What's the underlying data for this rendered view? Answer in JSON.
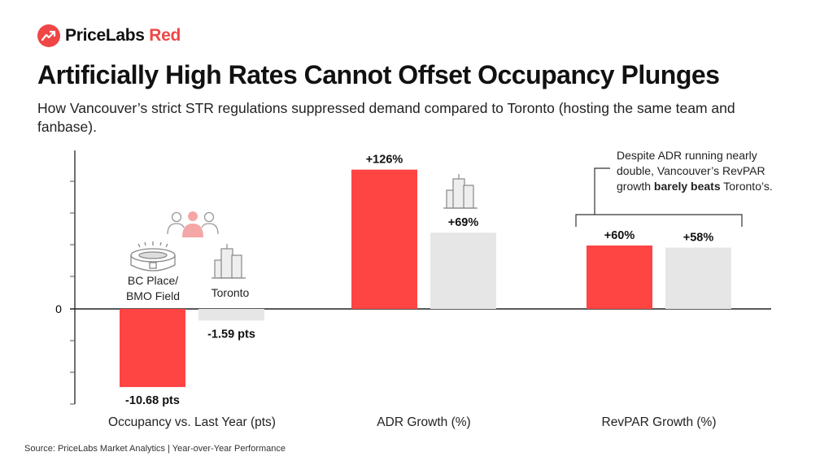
{
  "brand": {
    "name": "PriceLabs",
    "accent_word": "Red",
    "icon": "trending-up-icon",
    "accent_color": "#f04646"
  },
  "title": "Artificially High Rates Cannot Offset Occupancy Plunges",
  "subtitle": "How Vancouver’s strict STR regulations suppressed demand compared to Toronto (hosting the same team and fanbase).",
  "source": "Source: PriceLabs Market Analytics | Year-over-Year Performance",
  "annotation": {
    "pre": "Despite ADR running nearly double, Vancouver’s RevPAR growth ",
    "bold": "barely beats",
    "post": " Toronto’s."
  },
  "chart_data": {
    "type": "bar",
    "ytick_zero": "0",
    "grid": false,
    "colors": {
      "vancouver": "#ff4444",
      "toronto": "#e6e6e6"
    },
    "legend_labels": {
      "vancouver": "BC Place/ BMO Field",
      "toronto": "Toronto"
    },
    "legend_icons": [
      "stadium-icon",
      "buildings-icon",
      "people-icon"
    ],
    "categories": [
      "Occupancy vs. Last Year (pts)",
      "ADR Growth (%)",
      "RevPAR Growth (%)"
    ],
    "series": [
      {
        "key": "vancouver",
        "values": [
          -10.68,
          126,
          60
        ],
        "labels": [
          "-10.68 pts",
          "+126%",
          "+60%"
        ]
      },
      {
        "key": "toronto",
        "values": [
          -1.59,
          69,
          58
        ],
        "labels": [
          "-1.59 pts",
          "+69%",
          "+58%"
        ]
      }
    ]
  }
}
